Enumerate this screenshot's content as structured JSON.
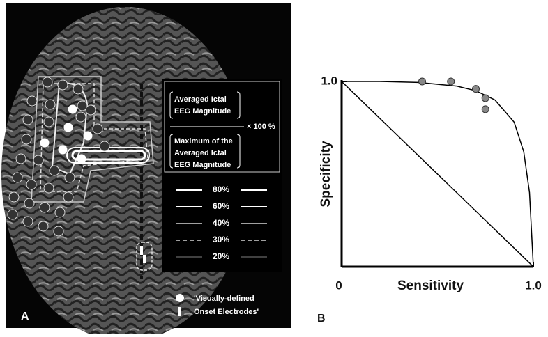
{
  "panel_a": {
    "label": "A",
    "formula": {
      "numerator": [
        "Averaged Ictal",
        "EEG Magnitude"
      ],
      "multiplier": "× 100 %",
      "denominator": [
        "Maximum of the",
        "Averaged Ictal",
        "EEG Magnitude"
      ]
    },
    "contours": [
      "80%",
      "60%",
      "40%",
      "30%",
      "20%"
    ],
    "electrodes": [
      "'Visually-defined",
      "Onset Electrodes'"
    ]
  },
  "chart_data": {
    "type": "scatter",
    "label": "B",
    "x_label": "Sensitivity",
    "y_label": "Specificity",
    "xlim": [
      0,
      1
    ],
    "ylim": [
      0,
      1
    ],
    "xticks": [
      {
        "value": 0,
        "label": "0"
      },
      {
        "value": 1,
        "label": "1.0"
      }
    ],
    "yticks": [
      {
        "value": 1,
        "label": "1.0"
      }
    ],
    "points": {
      "color": "#888888",
      "x": [
        0.42,
        0.57,
        0.7,
        0.75,
        0.75
      ],
      "y": [
        1.0,
        1.0,
        0.96,
        0.91,
        0.85
      ]
    },
    "lines": [
      {
        "color": "#000000",
        "x": [
          0,
          0.2,
          0.4,
          0.6,
          0.7,
          0.8,
          0.9,
          0.95,
          0.98,
          1
        ],
        "y": [
          1,
          1,
          0.995,
          0.975,
          0.95,
          0.9,
          0.78,
          0.62,
          0.4,
          0
        ]
      },
      {
        "color": "#000000",
        "x": [
          0,
          1
        ],
        "y": [
          1,
          0
        ]
      }
    ]
  }
}
